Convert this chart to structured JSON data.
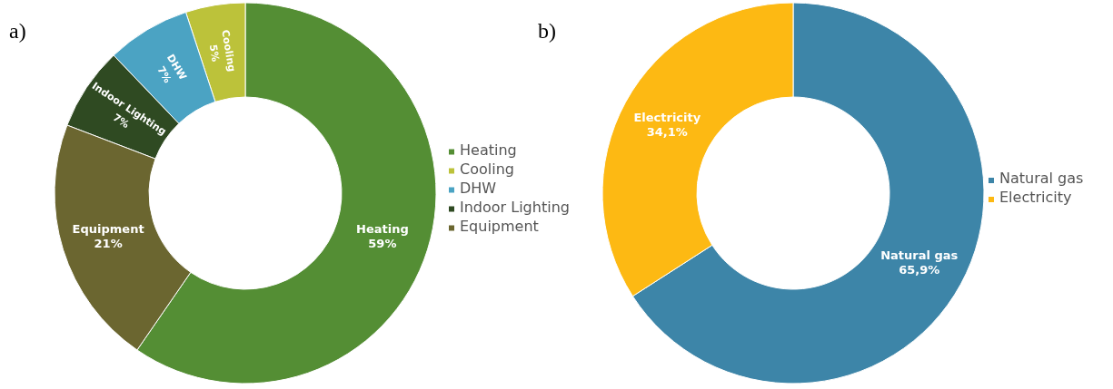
{
  "chart_data": [
    {
      "type": "donut",
      "title": "a)",
      "categories": [
        "Heating",
        "Cooling",
        "DHW",
        "Indoor Lighting",
        "Equipment"
      ],
      "values": [
        59,
        5,
        7,
        7,
        21
      ],
      "value_labels": [
        "59%",
        "5%",
        "7%",
        "7%",
        "21%"
      ],
      "colors": [
        "#548e34",
        "#bcc23a",
        "#4ba3c3",
        "#2f4a22",
        "#6b6630"
      ],
      "legend": "right"
    },
    {
      "type": "donut",
      "title": "b)",
      "categories": [
        "Natural gas",
        "Electricity"
      ],
      "values": [
        65.9,
        34.1
      ],
      "value_labels": [
        "65,9%",
        "34,1%"
      ],
      "colors": [
        "#3d85a8",
        "#fdb913"
      ],
      "legend": "right"
    }
  ]
}
